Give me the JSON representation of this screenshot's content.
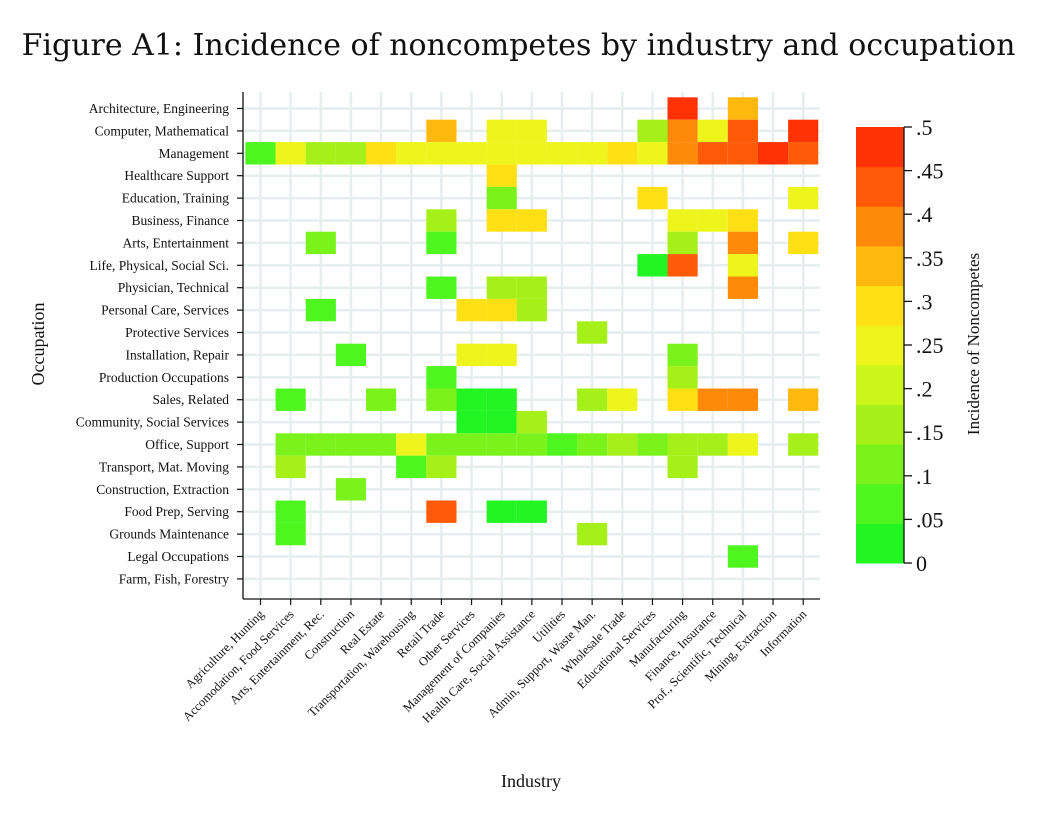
{
  "chart_data": {
    "type": "heatmap",
    "title": "Figure A1: Incidence of noncompetes by industry and occupation",
    "xlabel": "Industry",
    "ylabel": "Occupation",
    "colorbar_label": "Incidence of Noncompetes",
    "x_categories": [
      "Agriculture, Hunting",
      "Accomodation, Food Services",
      "Arts, Entertainment, Rec.",
      "Construction",
      "Real Estate",
      "Transportation, Warehousing",
      "Retail Trade",
      "Other Services",
      "Management of Companies",
      "Health Care, Social Assistance",
      "Utilities",
      "Admin, Support, Waste Man.",
      "Wholesale Trade",
      "Educational Services",
      "Manufacturing",
      "Finance, Insurance",
      "Prof., Scientific, Technical",
      "Mining, Extraction",
      "Information"
    ],
    "y_categories": [
      "Architecture, Engineering",
      "Computer, Mathematical",
      "Management",
      "Healthcare Support",
      "Education, Training",
      "Business, Finance",
      "Arts, Entertainment",
      "Life, Physical, Social Sci.",
      "Physician, Technical",
      "Personal Care, Services",
      "Protective Services",
      "Installation, Repair",
      "Production Occupations",
      "Sales, Related",
      "Community, Social Services",
      "Office, Support",
      "Transport, Mat. Moving",
      "Construction, Extraction",
      "Food Prep, Serving",
      "Grounds Maintenance",
      "Legal Occupations",
      "Farm, Fish, Forestry"
    ],
    "values": [
      [
        null,
        null,
        null,
        null,
        null,
        null,
        null,
        null,
        null,
        null,
        null,
        null,
        null,
        null,
        0.47,
        null,
        0.32,
        null,
        null
      ],
      [
        null,
        null,
        null,
        null,
        null,
        null,
        0.32,
        null,
        0.23,
        0.23,
        null,
        null,
        null,
        0.18,
        0.37,
        0.23,
        0.42,
        null,
        0.47
      ],
      [
        0.07,
        0.23,
        0.18,
        0.18,
        0.28,
        0.23,
        0.23,
        0.23,
        0.23,
        0.23,
        0.23,
        0.23,
        0.28,
        0.23,
        0.37,
        0.42,
        0.42,
        0.47,
        0.42
      ],
      [
        null,
        null,
        null,
        null,
        null,
        null,
        null,
        null,
        0.28,
        null,
        null,
        null,
        null,
        null,
        null,
        null,
        null,
        null,
        null
      ],
      [
        null,
        null,
        null,
        null,
        null,
        null,
        null,
        null,
        0.13,
        null,
        null,
        null,
        null,
        0.28,
        null,
        null,
        null,
        null,
        0.23
      ],
      [
        null,
        null,
        null,
        null,
        null,
        null,
        0.18,
        null,
        0.28,
        0.28,
        null,
        null,
        null,
        null,
        0.23,
        0.23,
        0.28,
        null,
        null
      ],
      [
        null,
        null,
        0.13,
        null,
        null,
        null,
        0.08,
        null,
        null,
        null,
        null,
        null,
        null,
        null,
        0.18,
        null,
        0.37,
        null,
        0.28
      ],
      [
        null,
        null,
        null,
        null,
        null,
        null,
        null,
        null,
        null,
        null,
        null,
        null,
        null,
        0.03,
        0.42,
        null,
        0.23,
        null,
        null
      ],
      [
        null,
        null,
        null,
        null,
        null,
        null,
        0.08,
        null,
        0.18,
        0.18,
        null,
        null,
        null,
        null,
        null,
        null,
        0.37,
        null,
        null
      ],
      [
        null,
        null,
        0.08,
        null,
        null,
        null,
        null,
        0.28,
        0.28,
        0.18,
        null,
        null,
        null,
        null,
        null,
        null,
        null,
        null,
        null
      ],
      [
        null,
        null,
        null,
        null,
        null,
        null,
        null,
        null,
        null,
        null,
        null,
        0.18,
        null,
        null,
        null,
        null,
        null,
        null,
        null
      ],
      [
        null,
        null,
        null,
        0.08,
        null,
        null,
        null,
        0.23,
        0.23,
        null,
        null,
        null,
        null,
        null,
        0.13,
        null,
        null,
        null,
        null
      ],
      [
        null,
        null,
        null,
        null,
        null,
        null,
        0.08,
        null,
        null,
        null,
        null,
        null,
        null,
        null,
        0.18,
        null,
        null,
        null,
        null
      ],
      [
        null,
        0.08,
        null,
        null,
        0.13,
        null,
        0.13,
        0.03,
        0.03,
        null,
        null,
        0.18,
        0.23,
        null,
        0.28,
        0.37,
        0.37,
        null,
        0.32
      ],
      [
        null,
        null,
        null,
        null,
        null,
        null,
        null,
        0.03,
        0.03,
        0.18,
        null,
        null,
        null,
        null,
        null,
        null,
        null,
        null,
        null
      ],
      [
        null,
        0.13,
        0.13,
        0.13,
        0.13,
        0.23,
        0.13,
        0.13,
        0.13,
        0.13,
        0.08,
        0.13,
        0.18,
        0.13,
        0.18,
        0.18,
        0.23,
        null,
        0.18
      ],
      [
        null,
        0.18,
        null,
        null,
        null,
        0.08,
        0.18,
        null,
        null,
        null,
        null,
        null,
        null,
        null,
        0.18,
        null,
        null,
        null,
        null
      ],
      [
        null,
        null,
        null,
        0.13,
        null,
        null,
        null,
        null,
        null,
        null,
        null,
        null,
        null,
        null,
        null,
        null,
        null,
        null,
        null
      ],
      [
        null,
        0.08,
        null,
        null,
        null,
        null,
        0.42,
        null,
        0.03,
        0.03,
        null,
        null,
        null,
        null,
        null,
        null,
        null,
        null,
        null
      ],
      [
        null,
        0.08,
        null,
        null,
        null,
        null,
        null,
        null,
        null,
        null,
        null,
        0.18,
        null,
        null,
        null,
        null,
        null,
        null,
        null
      ],
      [
        null,
        null,
        null,
        null,
        null,
        null,
        null,
        null,
        null,
        null,
        null,
        null,
        null,
        null,
        null,
        null,
        0.08,
        null,
        null
      ],
      [
        null,
        null,
        null,
        null,
        null,
        null,
        null,
        null,
        null,
        null,
        null,
        null,
        null,
        null,
        null,
        null,
        null,
        null,
        null
      ]
    ],
    "colorbar_ticks": [
      ".5",
      ".45",
      ".4",
      ".35",
      ".3",
      ".25",
      ".2",
      ".15",
      ".1",
      ".05",
      "0"
    ],
    "color_range": [
      0,
      0.5
    ],
    "color_bins": [
      "#22f522",
      "#4ef51e",
      "#7af21c",
      "#a6f01a",
      "#ccf51a",
      "#eef51c",
      "#ffe014",
      "#ffb80e",
      "#ff8a0a",
      "#ff5a08",
      "#ff3206"
    ],
    "grid": true,
    "legend_placement": "right"
  }
}
